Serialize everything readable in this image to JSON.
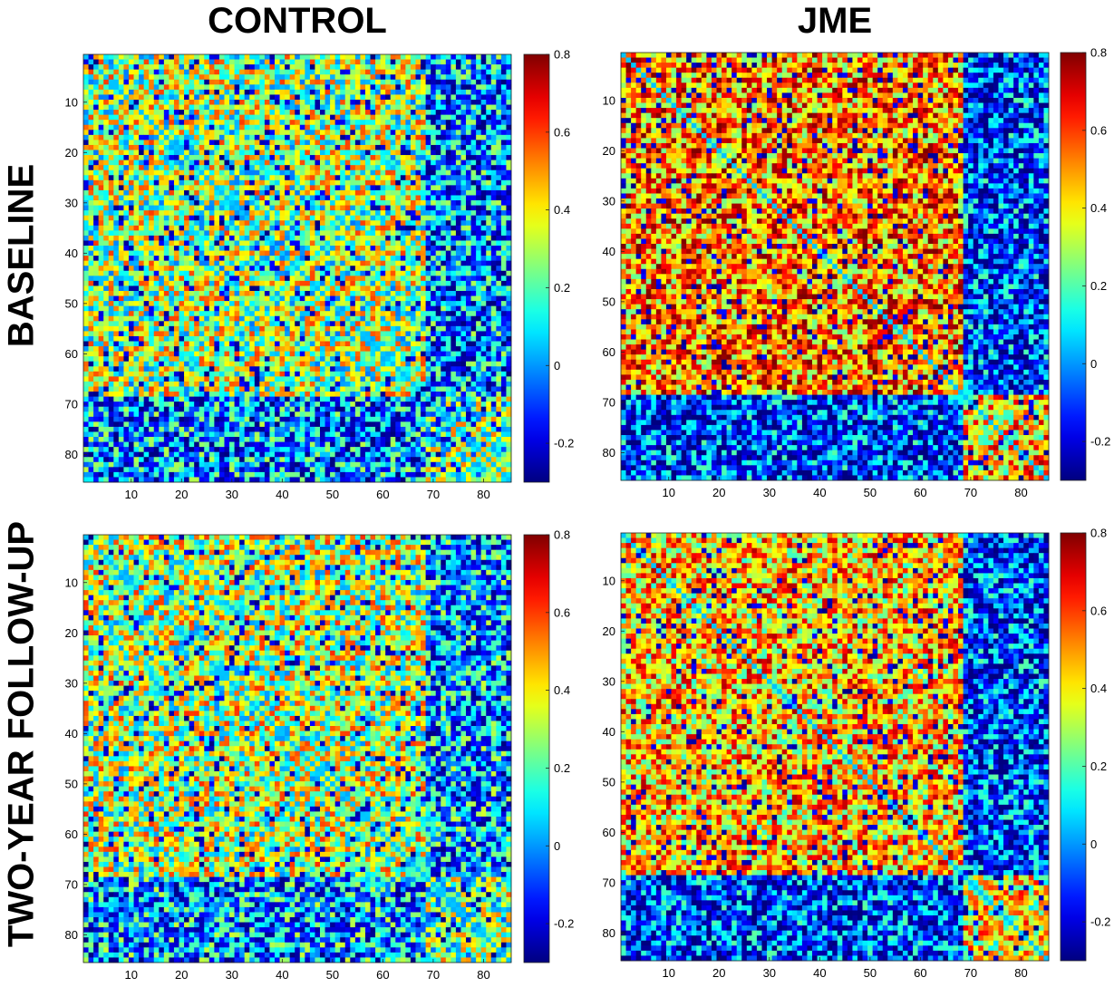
{
  "column_titles": [
    "CONTROL",
    "JME"
  ],
  "row_titles": [
    "BASELINE",
    "TWO-YEAR FOLLOW-UP"
  ],
  "chart_data": [
    {
      "type": "heatmap",
      "group": "CONTROL",
      "timepoint": "BASELINE",
      "matrix_size": 85,
      "x_ticks": [
        10,
        20,
        30,
        40,
        50,
        60,
        70,
        80
      ],
      "y_ticks": [
        10,
        20,
        30,
        40,
        50,
        60,
        70,
        80
      ],
      "colorbar_ticks": [
        "0.8",
        "0.6",
        "0.4",
        "0.2",
        "0",
        "-0.2"
      ],
      "colorbar_range": [
        -0.3,
        0.8
      ],
      "colormap": "jet",
      "pattern": {
        "mean": 0.22,
        "spread": 0.32,
        "module_end": 68,
        "module_mean": 0.28,
        "peripheral_mean": 0.0,
        "seed": 11
      }
    },
    {
      "type": "heatmap",
      "group": "JME",
      "timepoint": "BASELINE",
      "matrix_size": 85,
      "x_ticks": [
        10,
        20,
        30,
        40,
        50,
        60,
        70,
        80
      ],
      "y_ticks": [
        10,
        20,
        30,
        40,
        50,
        60,
        70,
        80
      ],
      "colorbar_ticks": [
        "0.8",
        "0.6",
        "0.4",
        "0.2",
        "0",
        "-0.2"
      ],
      "colorbar_range": [
        -0.3,
        0.8
      ],
      "colormap": "jet",
      "pattern": {
        "mean": 0.45,
        "spread": 0.3,
        "module_end": 68,
        "module_mean": 0.52,
        "peripheral_mean": -0.08,
        "seed": 23
      }
    },
    {
      "type": "heatmap",
      "group": "CONTROL",
      "timepoint": "TWO-YEAR FOLLOW-UP",
      "matrix_size": 85,
      "x_ticks": [
        10,
        20,
        30,
        40,
        50,
        60,
        70,
        80
      ],
      "y_ticks": [
        10,
        20,
        30,
        40,
        50,
        60,
        70,
        80
      ],
      "colorbar_ticks": [
        "0.8",
        "0.6",
        "0.4",
        "0.2",
        "0",
        "-0.2"
      ],
      "colorbar_range": [
        -0.3,
        0.8
      ],
      "colormap": "jet",
      "pattern": {
        "mean": 0.24,
        "spread": 0.32,
        "module_end": 68,
        "module_mean": 0.3,
        "peripheral_mean": 0.02,
        "seed": 37
      }
    },
    {
      "type": "heatmap",
      "group": "JME",
      "timepoint": "TWO-YEAR FOLLOW-UP",
      "matrix_size": 85,
      "x_ticks": [
        10,
        20,
        30,
        40,
        50,
        60,
        70,
        80
      ],
      "y_ticks": [
        10,
        20,
        30,
        40,
        50,
        60,
        70,
        80
      ],
      "colorbar_ticks": [
        "0.8",
        "0.6",
        "0.4",
        "0.2",
        "0",
        "-0.2"
      ],
      "colorbar_range": [
        -0.3,
        0.8
      ],
      "colormap": "jet",
      "pattern": {
        "mean": 0.38,
        "spread": 0.3,
        "module_end": 68,
        "module_mean": 0.45,
        "peripheral_mean": -0.08,
        "seed": 53
      }
    }
  ]
}
